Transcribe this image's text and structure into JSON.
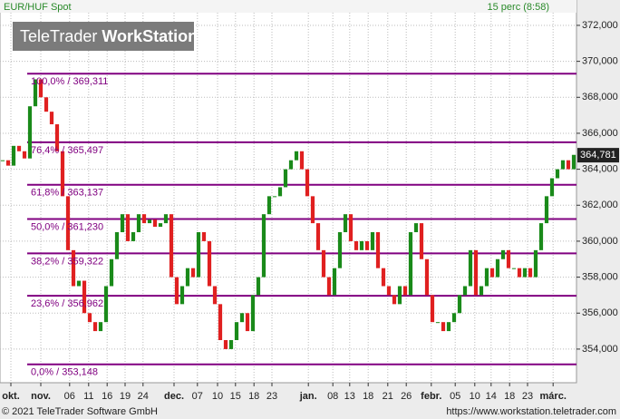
{
  "chart_data": {
    "type": "candlestick",
    "title": "EUR/HUF Spot",
    "subtitle": "15 perc (8:58)",
    "logo": {
      "brand": "TeleTrader",
      "product": "WorkStation"
    },
    "footer_left": "© 2021 TeleTrader Software GmbH",
    "footer_right": "https://www.workstation.teletrader.com",
    "up_color": "#1a8a1a",
    "down_color": "#e02020",
    "level_color": "#800080",
    "grid": true,
    "closes": [
      364.5,
      364.2,
      365.3,
      365.0,
      364.6,
      367.5,
      369.0,
      368.0,
      367.2,
      366.5,
      365.0,
      362.5,
      359.5,
      357.5,
      357.8,
      356.0,
      355.5,
      355.0,
      355.5,
      357.5,
      359.0,
      360.5,
      361.5,
      360.0,
      360.5,
      361.5,
      361.0,
      361.2,
      360.8,
      361.0,
      361.5,
      358.0,
      356.5,
      357.5,
      358.5,
      358.0,
      360.5,
      360.0,
      357.5,
      356.5,
      354.5,
      354.0,
      354.5,
      355.5,
      356.0,
      355.0,
      357.0,
      358.0,
      361.5,
      362.5,
      362.5,
      363.0,
      364.0,
      364.5,
      365.0,
      364.0,
      362.5,
      361.0,
      359.5,
      358.0,
      357.0,
      358.5,
      360.5,
      361.5,
      360.0,
      359.5,
      360.0,
      359.5,
      360.5,
      358.5,
      357.5,
      357.0,
      356.5,
      357.5,
      357.0,
      360.5,
      361.0,
      359.0,
      357.0,
      355.5,
      355.5,
      355.0,
      355.5,
      356.0,
      357.0,
      357.5,
      359.5,
      357.0,
      357.5,
      358.5,
      358.0,
      359.0,
      359.5,
      358.5,
      358.5,
      358.0,
      358.5,
      358.0,
      359.5,
      361.0,
      362.5,
      363.5,
      364.0,
      364.5,
      364.0,
      364.8
    ],
    "xlim": [
      0,
      106
    ],
    "xticks": [
      {
        "value": 2,
        "label": "okt."
      },
      {
        "value": 7.5,
        "label": "nov."
      },
      {
        "value": 12.8,
        "label": "06"
      },
      {
        "value": 16.3,
        "label": "11"
      },
      {
        "value": 19.7,
        "label": "16"
      },
      {
        "value": 23,
        "label": "19"
      },
      {
        "value": 26.3,
        "label": "24"
      },
      {
        "value": 32,
        "label": "dec."
      },
      {
        "value": 36.3,
        "label": "07"
      },
      {
        "value": 40,
        "label": "10"
      },
      {
        "value": 43.3,
        "label": "15"
      },
      {
        "value": 46.7,
        "label": "18"
      },
      {
        "value": 50,
        "label": "23"
      },
      {
        "value": 56.7,
        "label": "jan."
      },
      {
        "value": 61.2,
        "label": "08"
      },
      {
        "value": 64.3,
        "label": "13"
      },
      {
        "value": 67.7,
        "label": "18"
      },
      {
        "value": 71.3,
        "label": "21"
      },
      {
        "value": 74.7,
        "label": "26"
      },
      {
        "value": 79.3,
        "label": "febr."
      },
      {
        "value": 83.7,
        "label": "05"
      },
      {
        "value": 87.3,
        "label": "10"
      },
      {
        "value": 90.3,
        "label": "14"
      },
      {
        "value": 93.7,
        "label": "18"
      },
      {
        "value": 97,
        "label": "23"
      },
      {
        "value": 101.7,
        "label": "márc."
      }
    ],
    "ylim": [
      352.13,
      373.41
    ],
    "yticks": [
      {
        "value": 354,
        "label": "354,000"
      },
      {
        "value": 356,
        "label": "356,000"
      },
      {
        "value": 358,
        "label": "358,000"
      },
      {
        "value": 360,
        "label": "360,000"
      },
      {
        "value": 362,
        "label": "362,000"
      },
      {
        "value": 364,
        "label": "364,000"
      },
      {
        "value": 366,
        "label": "366,000"
      },
      {
        "value": 368,
        "label": "368,000"
      },
      {
        "value": 370,
        "label": "370,000"
      },
      {
        "value": 372,
        "label": "372,000"
      }
    ],
    "last_price": {
      "value": 364.781,
      "label": "364,781"
    },
    "levels": [
      {
        "value": 369.311,
        "label": "100,0% / 369,311"
      },
      {
        "value": 365.497,
        "label": "76,4% / 365,497"
      },
      {
        "value": 363.137,
        "label": "61,8% / 363,137"
      },
      {
        "value": 361.23,
        "label": "50,0% / 361,230"
      },
      {
        "value": 359.322,
        "label": "38,2% / 359,322"
      },
      {
        "value": 356.962,
        "label": "23,6% / 356,962"
      },
      {
        "value": 353.148,
        "label": "0,0% / 353,148"
      }
    ]
  }
}
